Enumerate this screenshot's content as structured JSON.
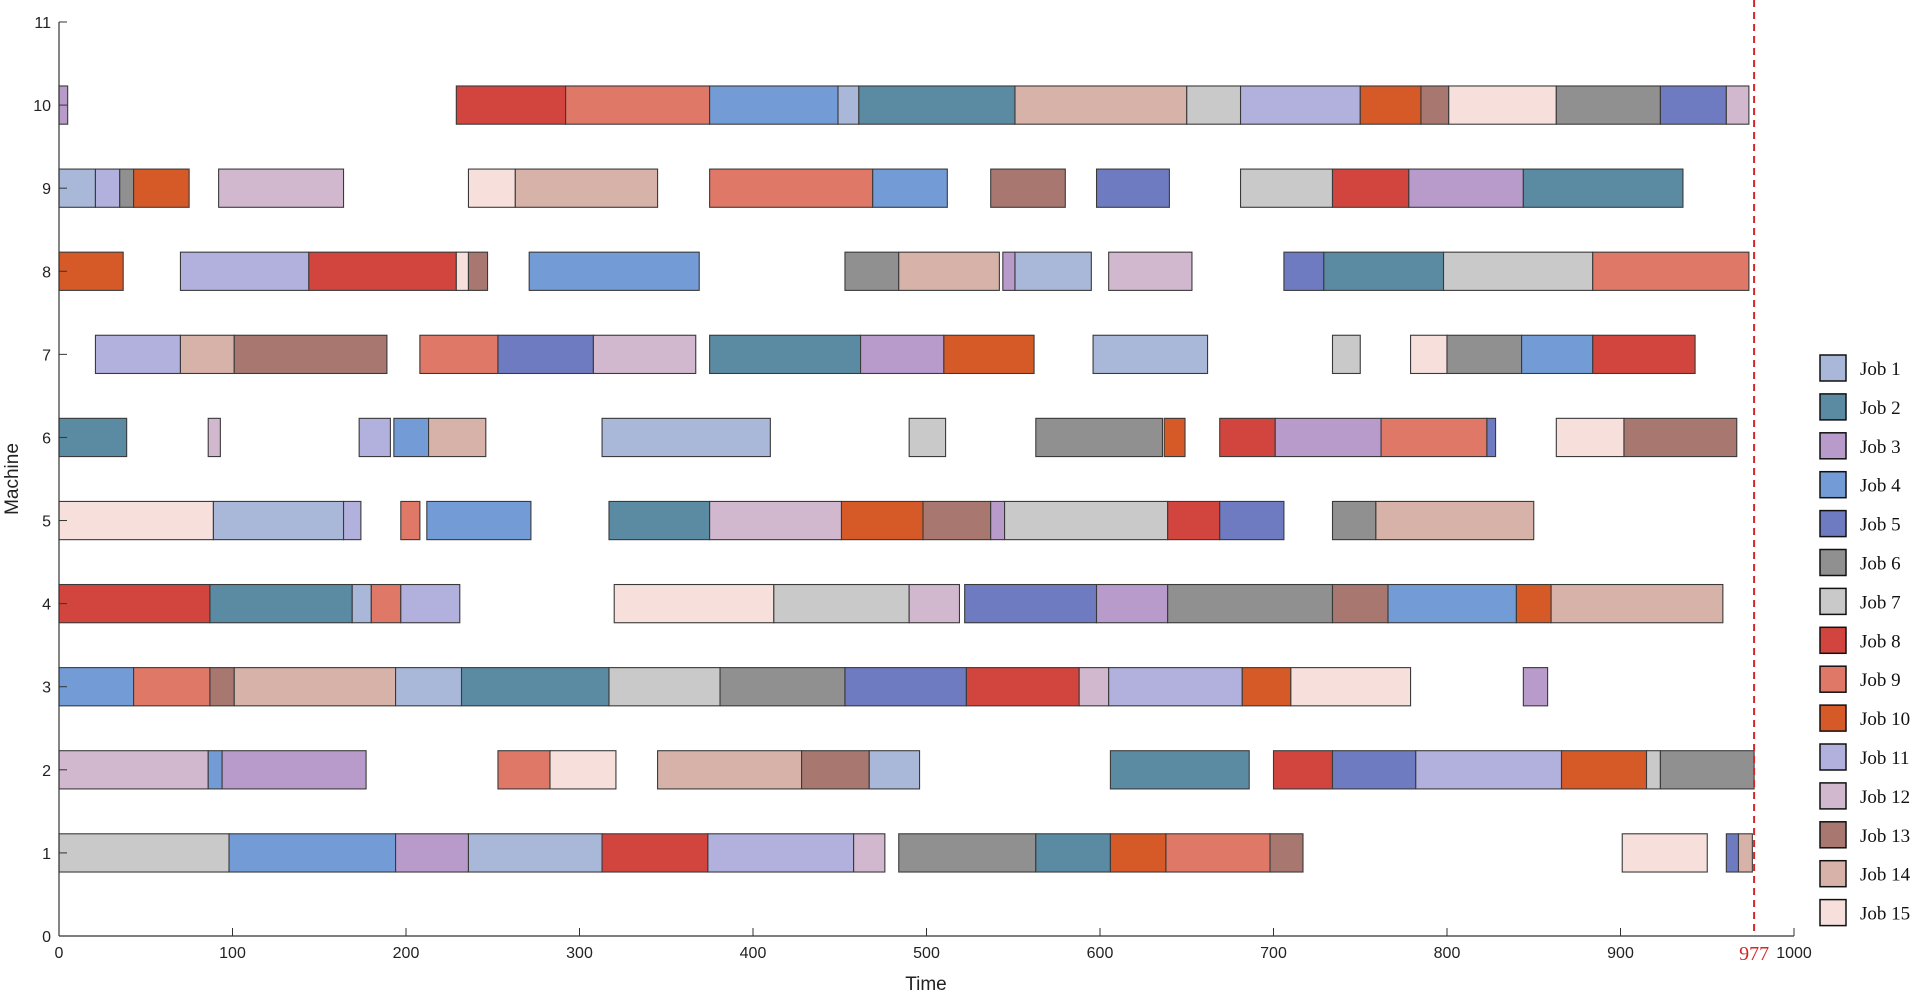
{
  "chart_data": {
    "type": "gantt",
    "xlabel": "Time",
    "ylabel": "Machine",
    "xlim": [
      0,
      1000
    ],
    "ylim": [
      0,
      11
    ],
    "xticks": [
      0,
      100,
      200,
      300,
      400,
      500,
      600,
      700,
      800,
      900,
      1000
    ],
    "yticks": [
      0,
      1,
      2,
      3,
      4,
      5,
      6,
      7,
      8,
      9,
      10,
      11
    ],
    "grid": false,
    "legend_position": "right",
    "makespan": 977,
    "makespan_label": "977",
    "makespan_color": "#d62728",
    "jobs": [
      {
        "name": "Job 1",
        "color": "#a9b8d9"
      },
      {
        "name": "Job 2",
        "color": "#5b8ba3"
      },
      {
        "name": "Job 3",
        "color": "#b89bcb"
      },
      {
        "name": "Job 4",
        "color": "#739cd6"
      },
      {
        "name": "Job 5",
        "color": "#6f7bc0"
      },
      {
        "name": "Job 6",
        "color": "#909090"
      },
      {
        "name": "Job 7",
        "color": "#c9c9c9"
      },
      {
        "name": "Job 8",
        "color": "#d2453f"
      },
      {
        "name": "Job 9",
        "color": "#df7867"
      },
      {
        "name": "Job 10",
        "color": "#d65a28"
      },
      {
        "name": "Job 11",
        "color": "#b2b0dc"
      },
      {
        "name": "Job 12",
        "color": "#d2b8cf"
      },
      {
        "name": "Job 13",
        "color": "#a77770"
      },
      {
        "name": "Job 14",
        "color": "#d7b2a8"
      },
      {
        "name": "Job 15",
        "color": "#f7e0dc"
      }
    ],
    "schedule": [
      {
        "machine": 10,
        "ops": [
          [
            3,
            0,
            5
          ],
          [
            8,
            229,
            292
          ],
          [
            9,
            292,
            375
          ],
          [
            4,
            375,
            449
          ],
          [
            1,
            449,
            461
          ],
          [
            2,
            461,
            551
          ],
          [
            14,
            551,
            650
          ],
          [
            7,
            650,
            681
          ],
          [
            11,
            681,
            750
          ],
          [
            10,
            750,
            785
          ],
          [
            13,
            785,
            801
          ],
          [
            15,
            801,
            863
          ],
          [
            6,
            863,
            923
          ],
          [
            5,
            923,
            961
          ],
          [
            12,
            961,
            974
          ]
        ]
      },
      {
        "machine": 9,
        "ops": [
          [
            1,
            0,
            21
          ],
          [
            11,
            21,
            35
          ],
          [
            6,
            35,
            43
          ],
          [
            10,
            43,
            75
          ],
          [
            12,
            92,
            164
          ],
          [
            15,
            236,
            263
          ],
          [
            14,
            263,
            345
          ],
          [
            9,
            375,
            469
          ],
          [
            4,
            469,
            512
          ],
          [
            13,
            537,
            580
          ],
          [
            5,
            598,
            640
          ],
          [
            7,
            681,
            734
          ],
          [
            8,
            734,
            778
          ],
          [
            3,
            778,
            844
          ],
          [
            2,
            844,
            936
          ]
        ]
      },
      {
        "machine": 8,
        "ops": [
          [
            10,
            0,
            37
          ],
          [
            11,
            70,
            144
          ],
          [
            8,
            144,
            229
          ],
          [
            15,
            229,
            236
          ],
          [
            13,
            236,
            247
          ],
          [
            4,
            271,
            369
          ],
          [
            6,
            453,
            484
          ],
          [
            14,
            484,
            542
          ],
          [
            3,
            544,
            551
          ],
          [
            1,
            551,
            595
          ],
          [
            12,
            605,
            653
          ],
          [
            5,
            706,
            729
          ],
          [
            2,
            729,
            798
          ],
          [
            7,
            798,
            884
          ],
          [
            9,
            884,
            974
          ]
        ]
      },
      {
        "machine": 7,
        "ops": [
          [
            11,
            21,
            70
          ],
          [
            14,
            70,
            101
          ],
          [
            13,
            101,
            189
          ],
          [
            9,
            208,
            253
          ],
          [
            5,
            253,
            308
          ],
          [
            12,
            308,
            367
          ],
          [
            2,
            375,
            462
          ],
          [
            3,
            462,
            510
          ],
          [
            10,
            510,
            562
          ],
          [
            1,
            596,
            662
          ],
          [
            7,
            734,
            750
          ],
          [
            15,
            779,
            800
          ],
          [
            6,
            800,
            843
          ],
          [
            4,
            843,
            884
          ],
          [
            8,
            884,
            943
          ]
        ]
      },
      {
        "machine": 6,
        "ops": [
          [
            2,
            0,
            39
          ],
          [
            12,
            86,
            93
          ],
          [
            11,
            173,
            191
          ],
          [
            4,
            193,
            213
          ],
          [
            14,
            213,
            246
          ],
          [
            1,
            313,
            410
          ],
          [
            7,
            490,
            511
          ],
          [
            6,
            563,
            636
          ],
          [
            10,
            637,
            649
          ],
          [
            8,
            669,
            701
          ],
          [
            3,
            701,
            762
          ],
          [
            9,
            762,
            823
          ],
          [
            5,
            823,
            828
          ],
          [
            15,
            863,
            902
          ],
          [
            13,
            902,
            967
          ]
        ]
      },
      {
        "machine": 5,
        "ops": [
          [
            15,
            0,
            89
          ],
          [
            1,
            89,
            164
          ],
          [
            11,
            164,
            174
          ],
          [
            9,
            197,
            208
          ],
          [
            4,
            212,
            272
          ],
          [
            2,
            317,
            375
          ],
          [
            12,
            375,
            451
          ],
          [
            10,
            451,
            498
          ],
          [
            13,
            498,
            537
          ],
          [
            3,
            537,
            545
          ],
          [
            7,
            545,
            639
          ],
          [
            8,
            639,
            669
          ],
          [
            5,
            669,
            706
          ],
          [
            6,
            734,
            759
          ],
          [
            14,
            759,
            850
          ]
        ]
      },
      {
        "machine": 4,
        "ops": [
          [
            8,
            0,
            87
          ],
          [
            2,
            87,
            169
          ],
          [
            1,
            169,
            180
          ],
          [
            9,
            180,
            197
          ],
          [
            11,
            197,
            231
          ],
          [
            15,
            320,
            412
          ],
          [
            7,
            412,
            490
          ],
          [
            12,
            490,
            519
          ],
          [
            5,
            522,
            598
          ],
          [
            3,
            598,
            639
          ],
          [
            6,
            639,
            734
          ],
          [
            13,
            734,
            766
          ],
          [
            4,
            766,
            840
          ],
          [
            10,
            840,
            860
          ],
          [
            14,
            860,
            959
          ]
        ]
      },
      {
        "machine": 3,
        "ops": [
          [
            4,
            0,
            43
          ],
          [
            9,
            43,
            87
          ],
          [
            13,
            87,
            101
          ],
          [
            14,
            101,
            194
          ],
          [
            1,
            194,
            232
          ],
          [
            2,
            232,
            317
          ],
          [
            7,
            317,
            381
          ],
          [
            6,
            381,
            453
          ],
          [
            5,
            453,
            523
          ],
          [
            8,
            523,
            588
          ],
          [
            12,
            588,
            605
          ],
          [
            11,
            605,
            682
          ],
          [
            10,
            682,
            710
          ],
          [
            15,
            710,
            779
          ],
          [
            3,
            844,
            858
          ]
        ]
      },
      {
        "machine": 2,
        "ops": [
          [
            12,
            0,
            86
          ],
          [
            4,
            86,
            94
          ],
          [
            3,
            94,
            177
          ],
          [
            9,
            253,
            283
          ],
          [
            15,
            283,
            321
          ],
          [
            14,
            345,
            428
          ],
          [
            13,
            428,
            467
          ],
          [
            1,
            467,
            496
          ],
          [
            2,
            606,
            686
          ],
          [
            8,
            700,
            734
          ],
          [
            5,
            734,
            782
          ],
          [
            11,
            782,
            866
          ],
          [
            10,
            866,
            915
          ],
          [
            7,
            915,
            923
          ],
          [
            6,
            923,
            977
          ]
        ]
      },
      {
        "machine": 1,
        "ops": [
          [
            7,
            0,
            98
          ],
          [
            4,
            98,
            194
          ],
          [
            3,
            194,
            236
          ],
          [
            1,
            236,
            313
          ],
          [
            8,
            313,
            374
          ],
          [
            11,
            374,
            458
          ],
          [
            12,
            458,
            476
          ],
          [
            6,
            484,
            563
          ],
          [
            2,
            563,
            606
          ],
          [
            10,
            606,
            638
          ],
          [
            9,
            638,
            698
          ],
          [
            13,
            698,
            717
          ],
          [
            15,
            901,
            950
          ],
          [
            5,
            961,
            968
          ],
          [
            14,
            968,
            976
          ]
        ]
      }
    ]
  }
}
